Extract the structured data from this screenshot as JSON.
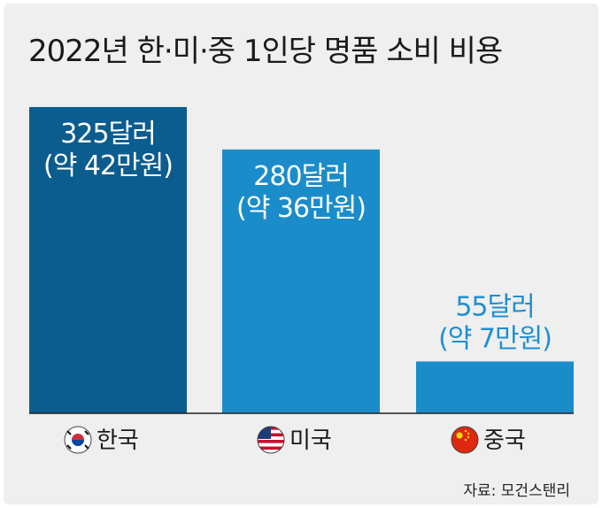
{
  "title": "2022년 한·미·중 1인당 명품 소비 비용",
  "source": "자료: 모건스탠리",
  "colors": {
    "background": "#efefef",
    "baseline": "#222222",
    "label_light": "#ffffff",
    "label_dark": "#1f8fd1"
  },
  "chart_data": {
    "type": "bar",
    "title": "2022년 한·미·중 1인당 명품 소비 비용",
    "categories": [
      "한국",
      "미국",
      "중국"
    ],
    "values": [
      325,
      280,
      55
    ],
    "unit": "달러",
    "ylim": [
      0,
      340
    ],
    "grid": false,
    "legend": "none",
    "bar_colors": [
      "#0b5c8f",
      "#1b8cca",
      "#1b8cca"
    ],
    "data_labels": [
      {
        "line1": "325달러",
        "line2": "(약 42만원)"
      },
      {
        "line1": "280달러",
        "line2": "(약 36만원)"
      },
      {
        "line1": "55달러",
        "line2": "(약 7만원)"
      }
    ],
    "category_icons": [
      "korea-flag-icon",
      "usa-flag-icon",
      "china-flag-icon"
    ]
  }
}
